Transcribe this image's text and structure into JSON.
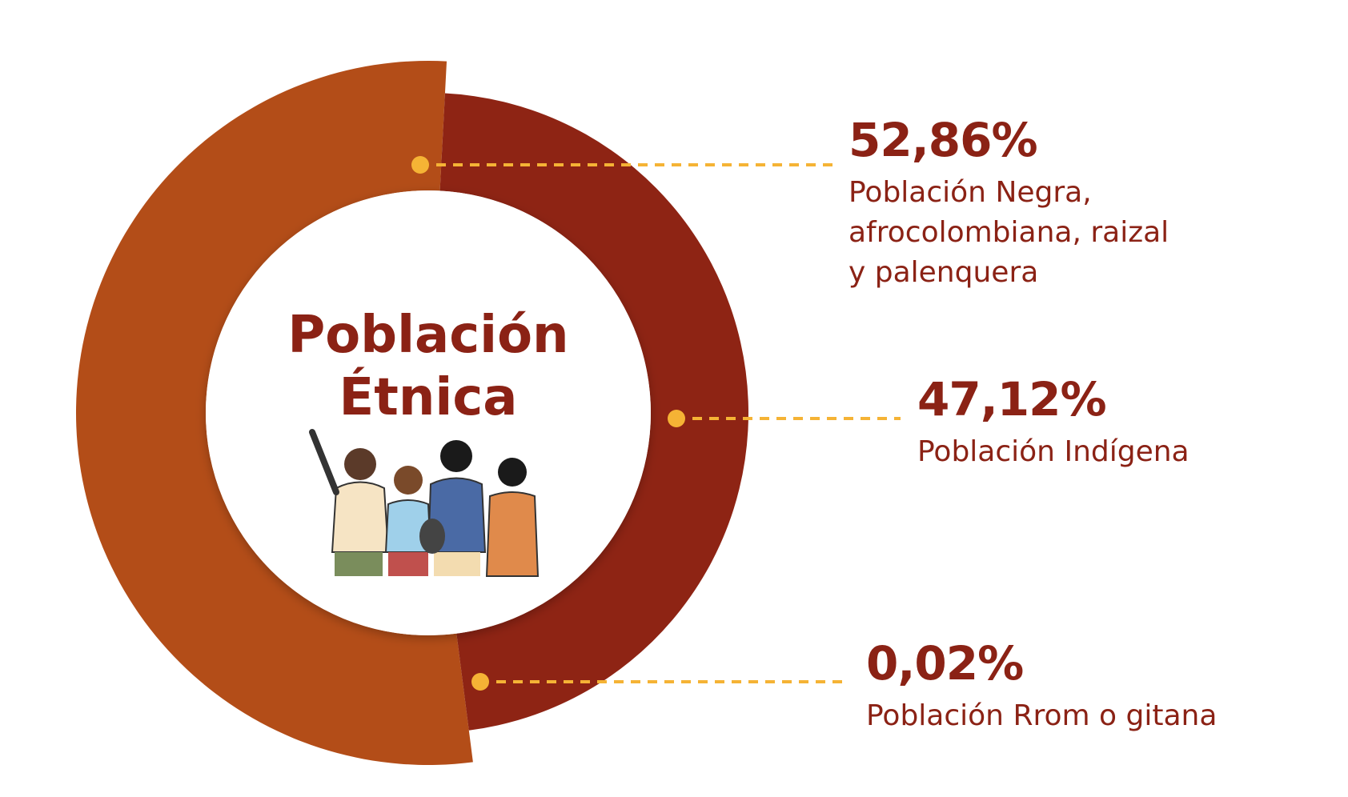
{
  "chart_data": {
    "type": "pie",
    "variant": "donut",
    "center_title": [
      "Población",
      "Étnica"
    ],
    "series": [
      {
        "value": 52.86,
        "value_label": "52,86%",
        "label_lines": [
          "Población Negra,",
          "afrocolombiana, raizal",
          "y palenquera"
        ],
        "color": "#b34d18"
      },
      {
        "value": 47.12,
        "value_label": "47,12%",
        "label_lines": [
          "Población Indígena"
        ],
        "color": "#8e2414"
      },
      {
        "value": 0.02,
        "value_label": "0,02%",
        "label_lines": [
          "Población Rrom o gitana"
        ],
        "color": "#8e2414"
      }
    ]
  },
  "colors": {
    "text": "#8b2215",
    "leader_line": "#f5b335",
    "center_fill": "#ffffff"
  },
  "icons": [
    "group-of-people-illustration"
  ]
}
